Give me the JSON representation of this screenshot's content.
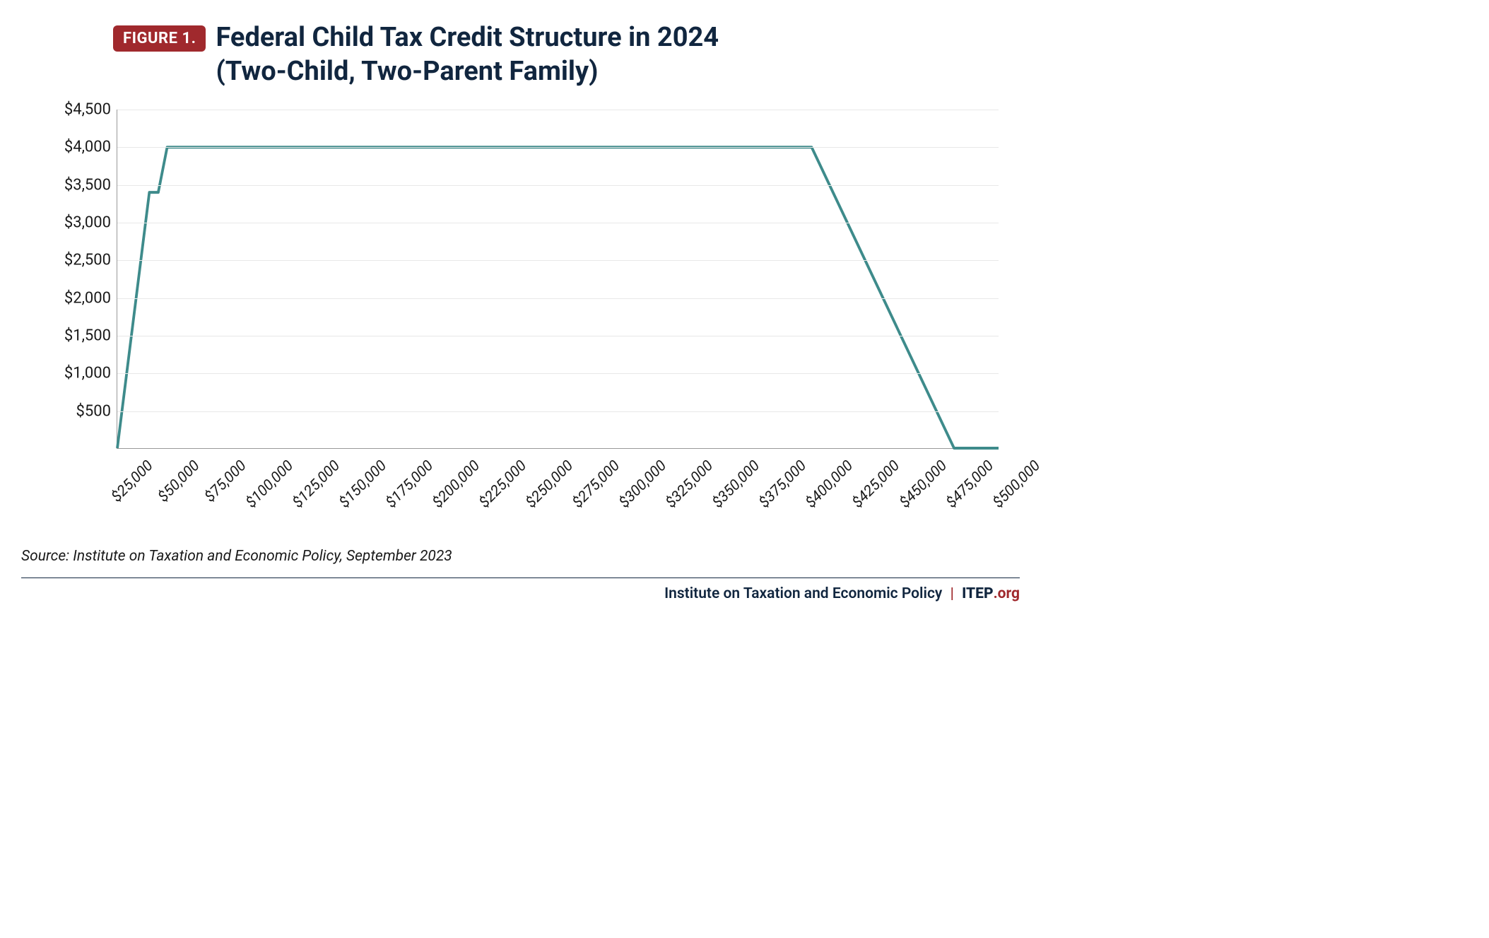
{
  "header": {
    "badge": "FIGURE 1.",
    "title_line1": "Federal Child Tax Credit Structure in 2024",
    "title_line2": "(Two-Child, Two-Parent Family)"
  },
  "chart": {
    "type": "line",
    "line_color": "#3e8b8b",
    "line_width": 4,
    "background_color": "#ffffff",
    "grid_color": "#e8e8e8",
    "axis_color": "#999999",
    "ylim": [
      0,
      4500
    ],
    "yticks": [
      500,
      1000,
      1500,
      2000,
      2500,
      3000,
      3500,
      4000,
      4500
    ],
    "ytick_labels": [
      "$500",
      "$1,000",
      "$1,500",
      "$2,000",
      "$2,500",
      "$3,000",
      "$3,500",
      "$4,000",
      "$4,500"
    ],
    "xlim": [
      10000,
      505000
    ],
    "xticks": [
      25000,
      50000,
      75000,
      100000,
      125000,
      150000,
      175000,
      200000,
      225000,
      250000,
      275000,
      300000,
      325000,
      350000,
      375000,
      400000,
      425000,
      450000,
      475000,
      500000
    ],
    "xtick_labels": [
      "$25,000",
      "$50,000",
      "$75,000",
      "$100,000",
      "$125,000",
      "$150,000",
      "$175,000",
      "$200,000",
      "$225,000",
      "$250,000",
      "$275,000",
      "$300,000",
      "$325,000",
      "$350,000",
      "$375,000",
      "$400,000",
      "$425,000",
      "$450,000",
      "$475,000",
      "$500,000"
    ],
    "series": [
      {
        "x": 10000,
        "y": 0
      },
      {
        "x": 28000,
        "y": 3400
      },
      {
        "x": 33000,
        "y": 3400
      },
      {
        "x": 38000,
        "y": 4000
      },
      {
        "x": 400000,
        "y": 4000
      },
      {
        "x": 480000,
        "y": 0
      },
      {
        "x": 505000,
        "y": 0
      }
    ],
    "tick_fontsize": 21,
    "title_fontsize": 38,
    "title_color": "#11263f"
  },
  "source": "Source: Institute on Taxation and Economic Policy, September 2023",
  "footer": {
    "org": "Institute on Taxation and Economic Policy",
    "brand": "ITEP",
    "suffix": ".org"
  }
}
